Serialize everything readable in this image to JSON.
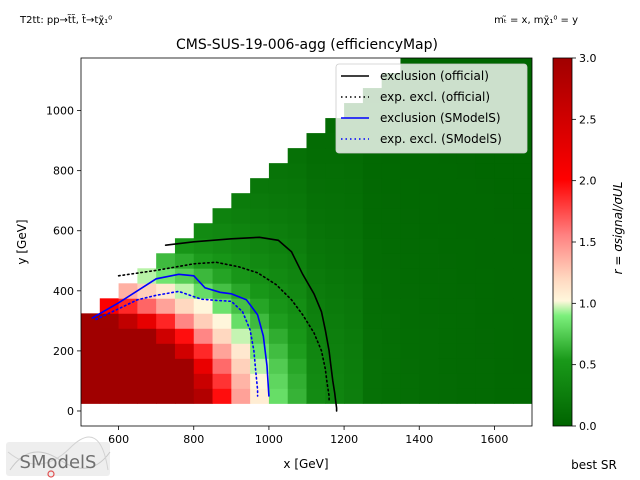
{
  "header": {
    "process": "T2tt: pp→t̃t̃, t̃→tχ̃₁⁰",
    "mass_def": "mₜ̃ = x, mχ̃₁⁰ = y"
  },
  "footer": {
    "best_sr": "best SR",
    "logo_text": "SModelS"
  },
  "colors": {
    "official_obs": "#000000",
    "official_exp": "#000000",
    "smodels_obs": "#0000ff",
    "smodels_exp": "#0000ff",
    "cmap_low": "#006400",
    "cmap_mid_low": "#00ff00",
    "cmap_mid": "#fff0d2",
    "cmap_mid_high": "#ff0000",
    "cmap_high": "#a00000"
  },
  "chart_data": {
    "type": "heatmap",
    "title": "CMS-SUS-19-006-agg (efficiencyMap)",
    "xlabel": "x [GeV]",
    "ylabel": "y [GeV]",
    "xlim": [
      500,
      1700
    ],
    "ylim": [
      -50,
      1175
    ],
    "xticks": [
      "600",
      "800",
      "1000",
      "1200",
      "1400",
      "1600"
    ],
    "xtick_values": [
      600,
      800,
      1000,
      1200,
      1400,
      1600
    ],
    "yticks": [
      "0",
      "200",
      "400",
      "600",
      "800",
      "1000"
    ],
    "ytick_values": [
      0,
      200,
      400,
      600,
      800,
      1000
    ],
    "colorbar": {
      "label": "r = σsignal/σUL",
      "range": [
        0,
        3
      ],
      "ticks": [
        "0.0",
        "0.5",
        "1.0",
        "1.5",
        "2.0",
        "2.5",
        "3.0"
      ],
      "tick_values": [
        0,
        0.5,
        1.0,
        1.5,
        2.0,
        2.5,
        3.0
      ]
    },
    "grid": {
      "x_min": 500,
      "x_step": 50,
      "y_min": 25,
      "y_step": 50,
      "ranges": [
        {
          "row": 0,
          "x_from": 500,
          "x_to": 1700
        },
        {
          "row": 1,
          "x_from": 500,
          "x_to": 1700
        },
        {
          "row": 2,
          "x_from": 500,
          "x_to": 1700
        },
        {
          "row": 3,
          "x_from": 500,
          "x_to": 1700
        },
        {
          "row": 4,
          "x_from": 500,
          "x_to": 1700
        },
        {
          "row": 5,
          "x_from": 500,
          "x_to": 1700
        },
        {
          "row": 6,
          "x_from": 550,
          "x_to": 1700
        },
        {
          "row": 7,
          "x_from": 600,
          "x_to": 1700
        },
        {
          "row": 8,
          "x_from": 650,
          "x_to": 1700
        },
        {
          "row": 9,
          "x_from": 700,
          "x_to": 1700
        },
        {
          "row": 10,
          "x_from": 750,
          "x_to": 1700
        },
        {
          "row": 11,
          "x_from": 800,
          "x_to": 1700
        },
        {
          "row": 12,
          "x_from": 850,
          "x_to": 1700
        },
        {
          "row": 13,
          "x_from": 900,
          "x_to": 1700
        },
        {
          "row": 14,
          "x_from": 950,
          "x_to": 1700
        },
        {
          "row": 15,
          "x_from": 1000,
          "x_to": 1700
        },
        {
          "row": 16,
          "x_from": 1050,
          "x_to": 1700
        },
        {
          "row": 17,
          "x_from": 1100,
          "x_to": 1700
        },
        {
          "row": 18,
          "x_from": 1150,
          "x_to": 1700
        },
        {
          "row": 19,
          "x_from": 1200,
          "x_to": 1700
        },
        {
          "row": 20,
          "x_from": 1250,
          "x_to": 1700
        },
        {
          "row": 21,
          "x_from": 1300,
          "x_to": 1700
        },
        {
          "row": 22,
          "x_from": 1350,
          "x_to": 1700
        }
      ]
    },
    "series": [
      {
        "name": "exclusion (official)",
        "style": "solid",
        "x": [
          725,
          800,
          900,
          975,
          1025,
          1060,
          1090,
          1120,
          1140,
          1150,
          1160,
          1165,
          1170,
          1175,
          1178,
          1180,
          1180
        ],
        "y": [
          552,
          563,
          573,
          578,
          568,
          530,
          455,
          390,
          330,
          270,
          200,
          150,
          100,
          60,
          30,
          10,
          0
        ]
      },
      {
        "name": "exp. excl. (official)",
        "style": "dotted",
        "x": [
          600,
          700,
          800,
          860,
          920,
          970,
          1020,
          1060,
          1090,
          1120,
          1140,
          1150,
          1155,
          1160,
          1160
        ],
        "y": [
          450,
          468,
          490,
          495,
          480,
          460,
          420,
          370,
          320,
          260,
          200,
          140,
          90,
          50,
          30
        ]
      },
      {
        "name": "exclusion (SModelS)",
        "style": "solid",
        "x": [
          530,
          600,
          650,
          700,
          760,
          800,
          830,
          870,
          900,
          940,
          970,
          985,
          995,
          1000
        ],
        "y": [
          310,
          360,
          400,
          440,
          455,
          450,
          410,
          395,
          390,
          370,
          320,
          250,
          150,
          50
        ]
      },
      {
        "name": "exp. excl. (SModelS)",
        "style": "dotted",
        "x": [
          540,
          600,
          650,
          700,
          760,
          820,
          860,
          900,
          930,
          950,
          960,
          965,
          970,
          970
        ],
        "y": [
          305,
          340,
          370,
          385,
          398,
          372,
          368,
          365,
          330,
          270,
          200,
          130,
          70,
          50
        ]
      }
    ],
    "legend": {
      "placement": "top-right",
      "entries": [
        {
          "label": "exclusion (official)"
        },
        {
          "label": "exp. excl. (official)"
        },
        {
          "label": "exclusion (SModelS)"
        },
        {
          "label": "exp. excl. (SModelS)"
        }
      ]
    }
  }
}
